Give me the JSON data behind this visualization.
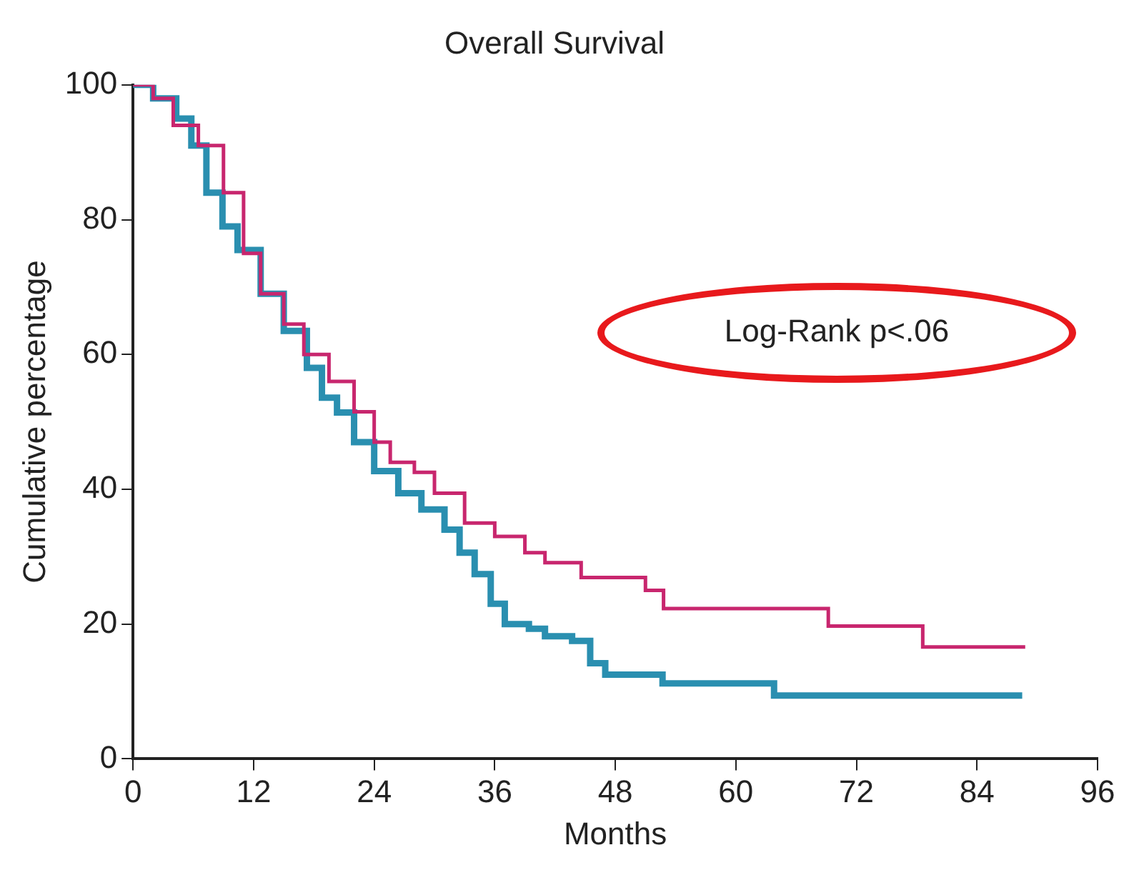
{
  "chart_data": {
    "type": "step",
    "title": "Overall Survival",
    "xlabel": "Months",
    "ylabel": "Cumulative percentage",
    "annotations": [
      "Log-Rank p<.06"
    ],
    "xlim": [
      0,
      96
    ],
    "xticks": [
      0,
      12,
      24,
      36,
      48,
      60,
      72,
      84,
      96
    ],
    "ylim": [
      0,
      100
    ],
    "yticks": [
      0,
      20,
      40,
      60,
      80,
      100
    ],
    "grid": false,
    "legend": false,
    "series": [
      {
        "color": "#c8266e",
        "x": [
          0,
          2,
          4,
          6.5,
          9,
          11,
          12.7,
          15,
          17,
          19.5,
          22,
          24,
          25.6,
          28,
          30,
          33,
          36,
          39,
          41,
          44.6,
          51,
          52.8,
          69.2,
          78.6,
          88.8
        ],
        "values": [
          100,
          98,
          94,
          91,
          84,
          75,
          69,
          64.5,
          60,
          56,
          51.5,
          47,
          44,
          42.5,
          39.4,
          35,
          33,
          30.6,
          29.1,
          26.9,
          25,
          22.3,
          19.7,
          16.6,
          16.6
        ]
      },
      {
        "color": "#2a8fb0",
        "x": [
          0,
          2,
          4.3,
          5.8,
          7.3,
          8.9,
          10.4,
          12.7,
          15,
          17.3,
          18.8,
          20.3,
          22,
          24,
          26.4,
          28.7,
          31,
          32.5,
          34,
          35.6,
          37,
          39.4,
          41,
          43.7,
          45.5,
          47,
          52.7,
          63.8,
          88.5
        ],
        "values": [
          100,
          98,
          95,
          91,
          84,
          79,
          75.5,
          69,
          63.5,
          58,
          53.6,
          51.4,
          47,
          42.7,
          39.4,
          37,
          34,
          30.6,
          27.4,
          23,
          20,
          19.3,
          18.2,
          17.5,
          14.2,
          12.5,
          11.2,
          9.4,
          9.4
        ]
      }
    ]
  }
}
